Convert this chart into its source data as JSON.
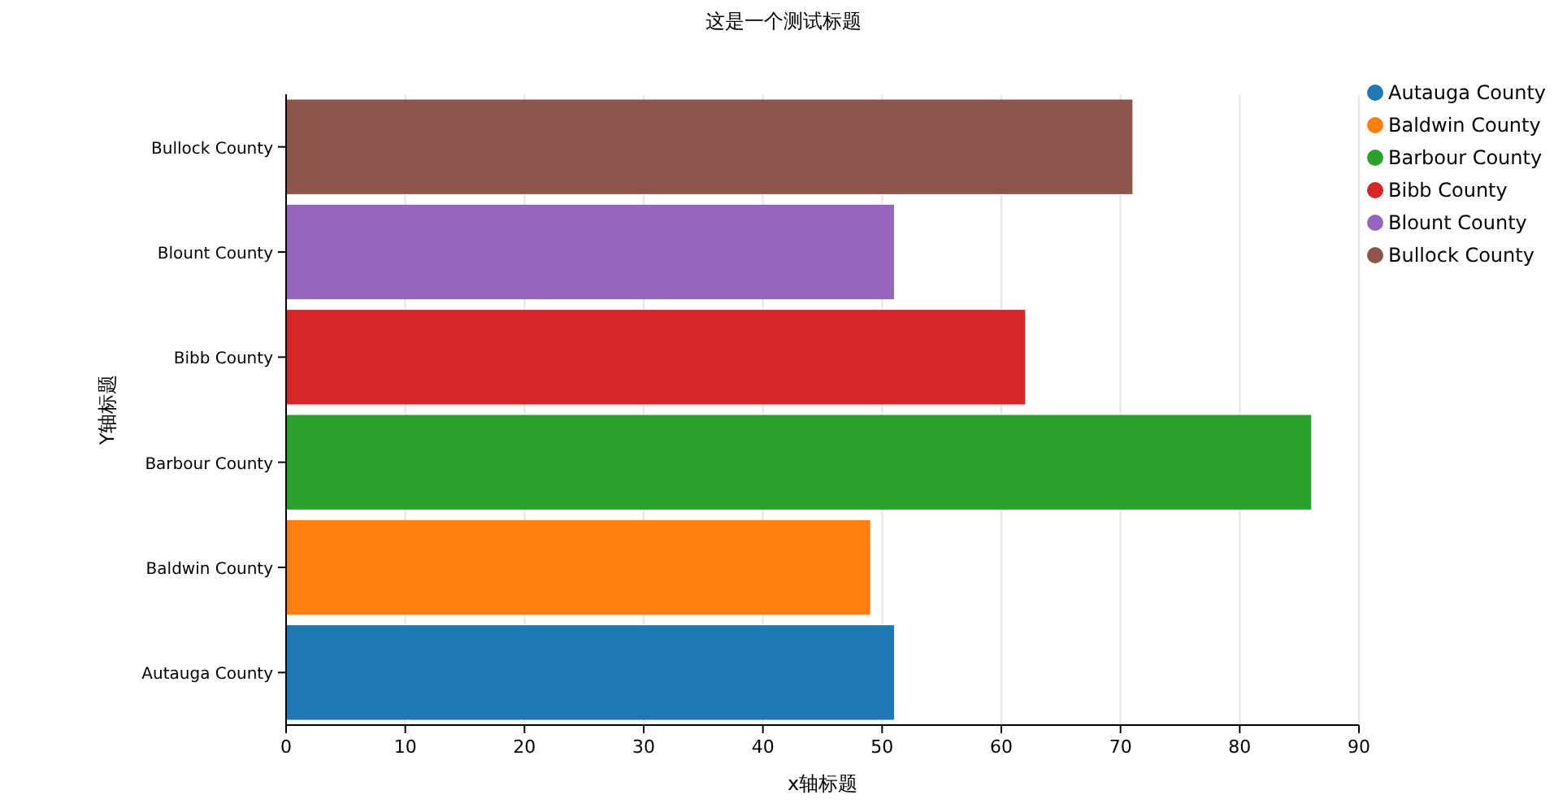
{
  "chart_data": {
    "type": "bar",
    "orientation": "horizontal",
    "title": "这是一个测试标题",
    "xlabel": "x轴标题",
    "ylabel": "Y轴标题",
    "categories": [
      "Bullock County",
      "Blount County",
      "Bibb County",
      "Barbour County",
      "Baldwin County",
      "Autauga County"
    ],
    "series": [
      {
        "name": "Autauga County",
        "color": "#1f77b4",
        "values": [
          null,
          null,
          null,
          null,
          null,
          51
        ]
      },
      {
        "name": "Baldwin County",
        "color": "#ff7f0e",
        "values": [
          null,
          null,
          null,
          null,
          49,
          null
        ]
      },
      {
        "name": "Barbour County",
        "color": "#2ca02c",
        "values": [
          null,
          null,
          null,
          86,
          null,
          null
        ]
      },
      {
        "name": "Bibb County",
        "color": "#d62728",
        "values": [
          null,
          null,
          62,
          null,
          null,
          null
        ]
      },
      {
        "name": "Blount County",
        "color": "#9467bd",
        "values": [
          null,
          51,
          null,
          null,
          null,
          null
        ]
      },
      {
        "name": "Bullock County",
        "color": "#8c564b",
        "values": [
          71,
          null,
          null,
          null,
          null,
          null
        ]
      }
    ],
    "xlim": [
      0,
      90
    ],
    "xticks": [
      0,
      10,
      20,
      30,
      40,
      50,
      60,
      70,
      80,
      90
    ],
    "grid": "x",
    "legend": "top right"
  }
}
